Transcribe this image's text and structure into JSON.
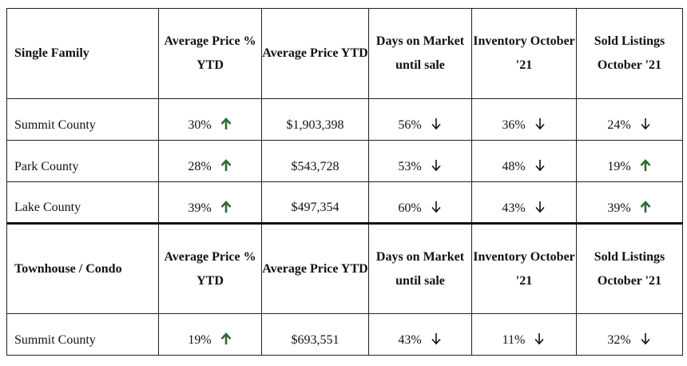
{
  "colors": {
    "up": "#2e6b2f",
    "down": "#111111"
  },
  "sections": [
    {
      "headers": [
        "Single Family",
        "Average Price % YTD",
        "Average Price YTD",
        "Days on Market until sale",
        "Inventory October '21",
        "Sold Listings October '21"
      ],
      "rows": [
        {
          "county": "Summit County",
          "pct_ytd": "30%",
          "price": "$1,903,398",
          "days": "56%",
          "inventory": "36%",
          "sold": "24%"
        },
        {
          "county": "Park County",
          "pct_ytd": "28%",
          "price": "$543,728",
          "days": "53%",
          "inventory": "48%",
          "sold": "19%"
        },
        {
          "county": "Lake County",
          "pct_ytd": "39%",
          "price": "$497,354",
          "days": "60%",
          "inventory": "43%",
          "sold": "39%"
        }
      ]
    },
    {
      "headers": [
        "Townhouse / Condo",
        "Average Price % YTD",
        "Average Price YTD",
        "Days on Market until sale",
        "Inventory October '21",
        "Sold Listings October '21"
      ],
      "rows": [
        {
          "county": "Summit County",
          "pct_ytd": "19%",
          "price": "$693,551",
          "days": "43%",
          "inventory": "11%",
          "sold": "32%"
        }
      ]
    }
  ],
  "trend_icons": {
    "up": "arrow-up-icon",
    "down": "arrow-down-icon"
  }
}
